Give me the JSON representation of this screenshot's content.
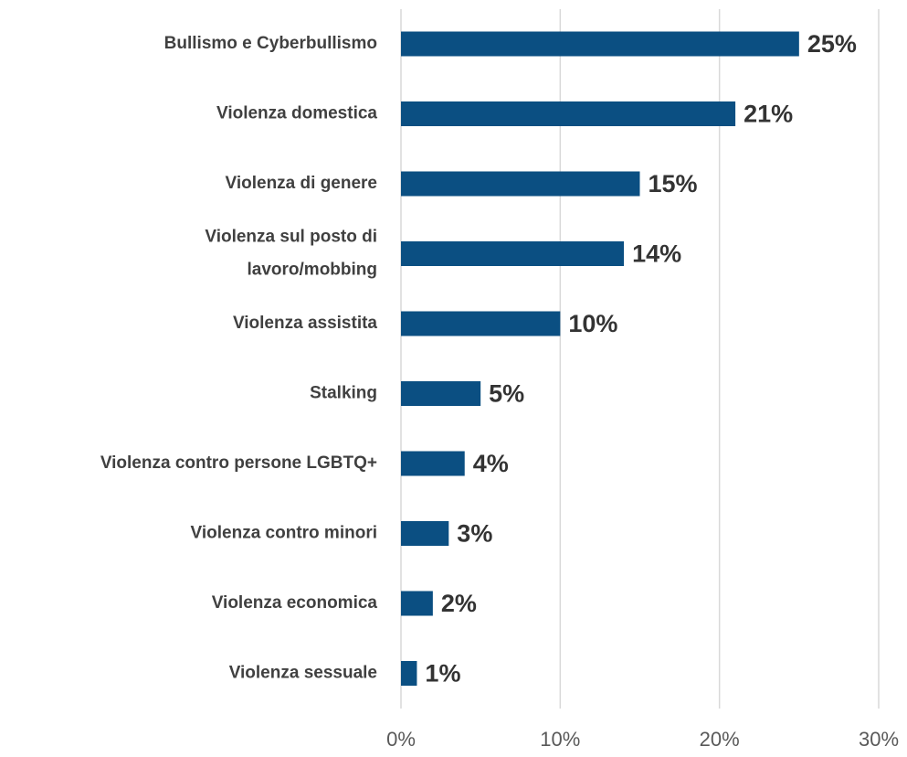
{
  "chart_data": {
    "type": "bar",
    "orientation": "horizontal",
    "categories": [
      "Bullismo e Cyberbullismo",
      "Violenza domestica",
      "Violenza di genere",
      [
        "Violenza sul posto di",
        "lavoro/mobbing"
      ],
      "Violenza assistita",
      "Stalking",
      "Violenza contro persone LGBTQ+",
      "Violenza contro minori",
      "Violenza economica",
      "Violenza sessuale"
    ],
    "values": [
      25,
      21,
      15,
      14,
      10,
      5,
      4,
      3,
      2,
      1
    ],
    "value_labels": [
      "25%",
      "21%",
      "15%",
      "14%",
      "10%",
      "5%",
      "4%",
      "3%",
      "2%",
      "1%"
    ],
    "color": "#0b4f82",
    "xlim": [
      0,
      30
    ],
    "xticks": [
      {
        "value": 0,
        "label": "0%"
      },
      {
        "value": 10,
        "label": "10%"
      },
      {
        "value": 20,
        "label": "20%"
      },
      {
        "value": 30,
        "label": "30%"
      }
    ],
    "grid": true
  }
}
